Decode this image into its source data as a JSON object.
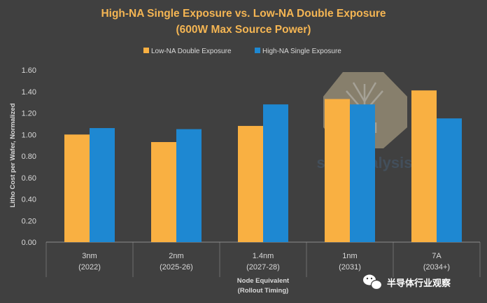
{
  "chart_data": {
    "type": "bar",
    "title": "High-NA Single Exposure vs. Low-NA Double Exposure",
    "subtitle": "(600W Max Source Power)",
    "categories": [
      {
        "line1": "3nm",
        "line2": "(2022)"
      },
      {
        "line1": "2nm",
        "line2": "(2025-26)"
      },
      {
        "line1": "1.4nm",
        "line2": "(2027-28)"
      },
      {
        "line1": "1nm",
        "line2": "(2031)"
      },
      {
        "line1": "7A",
        "line2": "(2034+)"
      }
    ],
    "series": [
      {
        "name": "Low-NA Double Exposure",
        "color": "#F9B042",
        "values": [
          1.0,
          0.93,
          1.08,
          1.33,
          1.41
        ]
      },
      {
        "name": "High-NA Single Exposure",
        "color": "#1E88D2",
        "values": [
          1.06,
          1.05,
          1.28,
          1.28,
          1.15
        ]
      }
    ],
    "ylabel": "Litho Cost per Wafer, Normalized",
    "xlabel_line1": "Node Equivalent",
    "xlabel_line2": "(Rollout Timing)",
    "ylim": [
      0,
      1.6
    ],
    "yticks": [
      "0.00",
      "0.20",
      "0.40",
      "0.60",
      "0.80",
      "1.00",
      "1.20",
      "1.40",
      "1.60"
    ],
    "grid": false,
    "legend_position": "top-center"
  },
  "watermark": {
    "text": "semianalysis",
    "icon": "tree-logo-icon"
  },
  "footer": {
    "wechat_icon": "wechat-icon",
    "source_label": "半导体行业观察"
  }
}
